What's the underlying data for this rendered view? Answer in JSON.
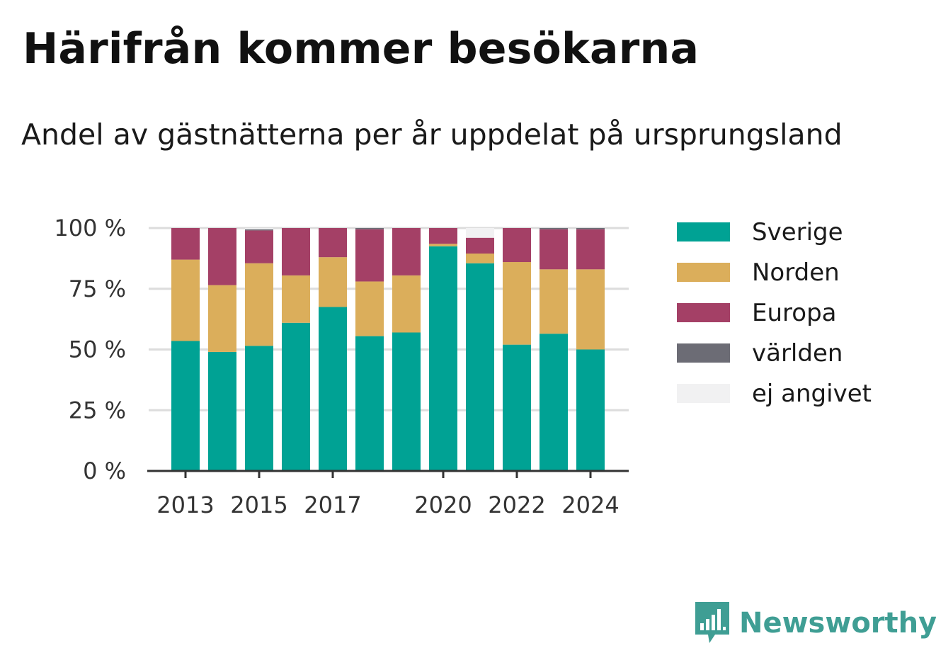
{
  "title": "Härifrån kommer besökarna",
  "subtitle": "Andel av gästnätterna per år uppdelat på ursprungsland",
  "brand": {
    "name": "Newsworthy",
    "icon": "newsworthy-logo-icon",
    "color": "#3f9e94"
  },
  "chart_data": {
    "type": "bar",
    "stacked": true,
    "categories": [
      "2013",
      "2014",
      "2015",
      "2016",
      "2017",
      "2018",
      "2019",
      "2020",
      "2021",
      "2022",
      "2023",
      "2024"
    ],
    "x_tick_labels": [
      "2013",
      "2015",
      "2017",
      "2020",
      "2022",
      "2024"
    ],
    "ylim": [
      0,
      100
    ],
    "y_ticks": [
      0,
      25,
      50,
      75,
      100
    ],
    "y_tick_labels": [
      "0 %",
      "25 %",
      "50 %",
      "75 %",
      "100 %"
    ],
    "grid": true,
    "legend_position": "right",
    "series": [
      {
        "name": "Sverige",
        "color": "#00a294",
        "values": [
          53.5,
          49,
          51.5,
          61,
          67.5,
          55.5,
          57,
          92.5,
          85.5,
          52,
          56.5,
          50
        ]
      },
      {
        "name": "Norden",
        "color": "#dbae5b",
        "values": [
          33.5,
          27.5,
          34,
          19.5,
          20.5,
          22.5,
          23.5,
          1,
          4,
          34,
          26.5,
          33
        ]
      },
      {
        "name": "Europa",
        "color": "#a44066",
        "values": [
          13,
          23.5,
          13.5,
          19.5,
          12,
          21.5,
          19.5,
          6.5,
          6.5,
          14,
          16.5,
          16.5
        ]
      },
      {
        "name": "världen",
        "color": "#6c6c75",
        "values": [
          0,
          0,
          0.5,
          0,
          0,
          0.5,
          0,
          0,
          0,
          0,
          0.5,
          0.5
        ]
      },
      {
        "name": "ej angivet",
        "color": "#f1f1f2",
        "values": [
          0,
          0,
          0.5,
          0,
          0,
          0,
          0,
          0,
          4,
          0,
          0,
          0
        ]
      }
    ]
  }
}
